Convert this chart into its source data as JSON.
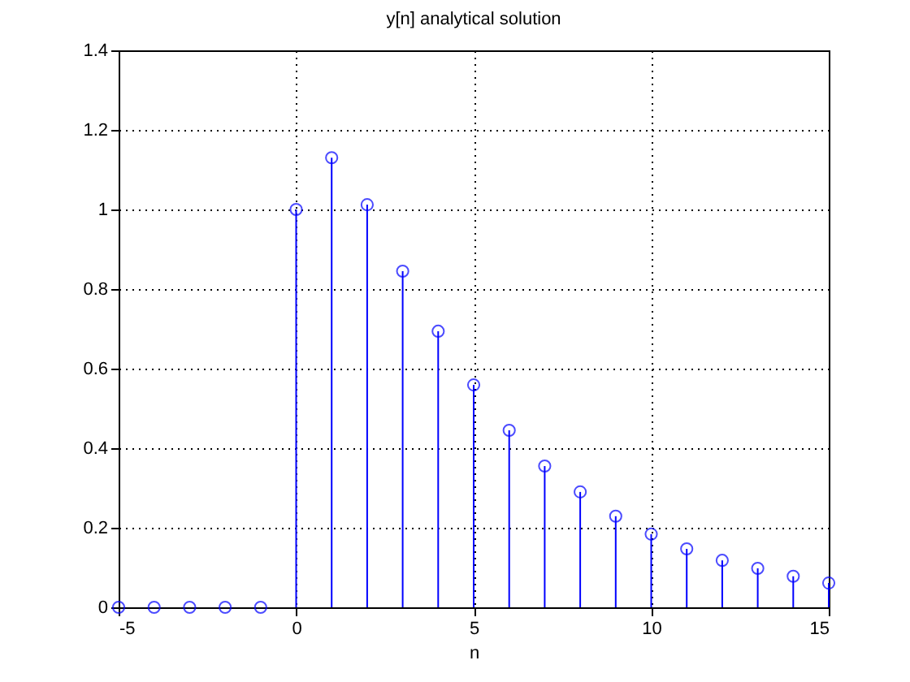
{
  "chart_data": {
    "type": "lollipop",
    "title": "y[n] analytical solution",
    "xlabel": "n",
    "x": [
      -5,
      -4,
      -3,
      -2,
      -1,
      0,
      1,
      2,
      3,
      4,
      5,
      6,
      7,
      8,
      9,
      10,
      11,
      12,
      13,
      14,
      15
    ],
    "values": [
      0,
      0,
      0,
      0,
      0,
      1.0,
      1.13,
      1.012,
      0.845,
      0.694,
      0.559,
      0.445,
      0.355,
      0.29,
      0.229,
      0.184,
      0.147,
      0.118,
      0.098,
      0.078,
      0.061
    ],
    "color": "#0000ff",
    "marker": "circle",
    "grid": true,
    "xlim": [
      -5,
      15
    ],
    "xticks": [
      -5,
      0,
      5,
      10,
      15
    ],
    "ylim": [
      0,
      1.4
    ],
    "yticks": [
      0,
      0.2,
      0.4,
      0.6,
      0.8,
      1,
      1.2,
      1.4
    ]
  }
}
